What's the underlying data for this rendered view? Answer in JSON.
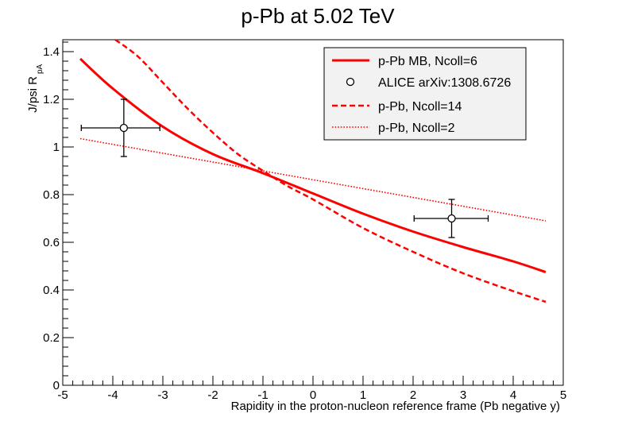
{
  "chart_data": {
    "type": "line",
    "title": "p-Pb at 5.02 TeV",
    "xlabel": "Rapidity in the proton-nucleon reference frame (Pb negative y)",
    "ylabel": "J/psi R",
    "ylabel_subscript": "pA",
    "xlim": [
      -5,
      5
    ],
    "ylim": [
      0,
      1.45
    ],
    "x_ticks": [
      -5,
      -4,
      -3,
      -2,
      -1,
      0,
      1,
      2,
      3,
      4,
      5
    ],
    "x_tick_labels": [
      "-5",
      "-4",
      "-3",
      "-2",
      "-1",
      "0",
      "1",
      "2",
      "3",
      "4",
      "5"
    ],
    "y_ticks": [
      0,
      0.2,
      0.4,
      0.6,
      0.8,
      1,
      1.2,
      1.4
    ],
    "y_tick_labels": [
      "0",
      "0.2",
      "0.4",
      "0.6",
      "0.8",
      "1",
      "1.2",
      "1.4"
    ],
    "grid": false,
    "legend_position": "top-right",
    "colors": {
      "curve": "#ff0000",
      "points": "#000000",
      "legend_bg": "#f2f2f2"
    },
    "series": [
      {
        "name": "p-Pb MB, Ncoll=6",
        "style": "solid",
        "x": [
          -4.65,
          -4,
          -3,
          -2,
          -1,
          0,
          1,
          2,
          3,
          4,
          4.65
        ],
        "y": [
          1.37,
          1.245,
          1.085,
          0.97,
          0.89,
          0.805,
          0.72,
          0.645,
          0.58,
          0.52,
          0.475
        ]
      },
      {
        "name": "ALICE arXiv:1308.6726",
        "style": "points",
        "points": [
          {
            "x": -3.78,
            "y": 1.08,
            "xerr": [
              0.85,
              0.72
            ],
            "yerr": [
              0.12,
              0.12
            ]
          },
          {
            "x": 2.77,
            "y": 0.7,
            "xerr": [
              0.75,
              0.73
            ],
            "yerr": [
              0.08,
              0.08
            ]
          }
        ]
      },
      {
        "name": "p-Pb, Ncoll=14",
        "style": "dashed",
        "x": [
          -3.95,
          -3.5,
          -3,
          -2.5,
          -2,
          -1.5,
          -1,
          -0.5,
          0,
          1,
          2,
          3,
          4,
          4.65
        ],
        "y": [
          1.45,
          1.38,
          1.27,
          1.16,
          1.06,
          0.97,
          0.9,
          0.835,
          0.78,
          0.66,
          0.56,
          0.47,
          0.395,
          0.35
        ]
      },
      {
        "name": "p-Pb, Ncoll=2",
        "style": "dotted",
        "x": [
          -4.65,
          4.65
        ],
        "y": [
          1.035,
          0.69
        ]
      }
    ]
  }
}
